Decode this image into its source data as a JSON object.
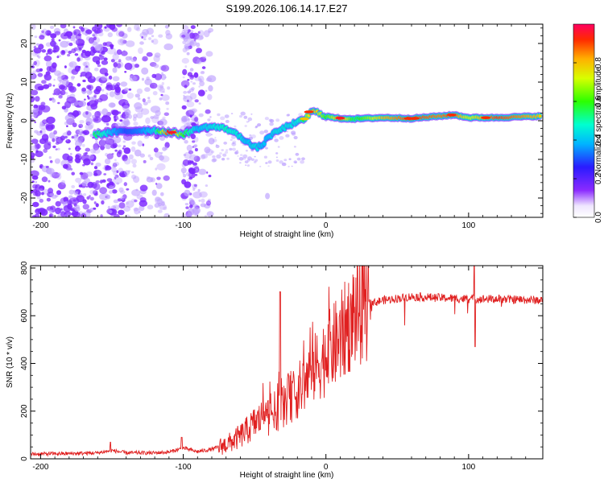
{
  "title": "S199.2026.106.14.17.E27",
  "colorbar": {
    "label": "Normalized spectral amplitude",
    "ticks": [
      "0.0",
      "0.2",
      "0.4",
      "0.6",
      "0.8"
    ],
    "tick_values": [
      0.0,
      0.2,
      0.4,
      0.6,
      0.8
    ],
    "range": [
      0,
      1
    ]
  },
  "chart_data": [
    {
      "type": "heatmap",
      "title": "",
      "xlabel": "Height of straight line (km)",
      "ylabel": "Frequency (Hz)",
      "xlim": [
        -207,
        152
      ],
      "ylim": [
        -25,
        25
      ],
      "xticks": [
        -200,
        -100,
        0,
        100
      ],
      "xtick_labels": [
        "-200",
        "-100",
        "0",
        "100"
      ],
      "yticks": [
        -20,
        -10,
        0,
        10,
        20
      ],
      "ytick_labels": [
        "-20",
        "-10",
        "0",
        "10",
        "20"
      ],
      "ridge": {
        "x": [
          -160,
          -150,
          -140,
          -130,
          -120,
          -110,
          -100,
          -90,
          -80,
          -70,
          -60,
          -55,
          -50,
          -45,
          -40,
          -35,
          -30,
          -25,
          -20,
          -15,
          -12,
          -10,
          -5,
          0,
          5,
          10,
          20,
          40,
          60,
          80,
          90,
          100,
          120,
          150
        ],
        "freq": [
          -3.5,
          -3,
          -2.8,
          -2.5,
          -2.5,
          -3,
          -3.5,
          -2,
          -1.5,
          -2,
          -4,
          -5.5,
          -7,
          -6.5,
          -4,
          -3,
          -2,
          -1,
          -0.5,
          0.5,
          1.5,
          2.5,
          2,
          1.2,
          0.8,
          0.6,
          0.5,
          0.8,
          0.6,
          1.2,
          1.5,
          0.8,
          0.8,
          1.2
        ],
        "amplitude": [
          0.55,
          0.4,
          0.3,
          0.35,
          0.45,
          0.95,
          0.6,
          0.4,
          0.45,
          0.5,
          0.45,
          0.4,
          0.45,
          0.4,
          0.4,
          0.45,
          0.45,
          0.45,
          0.45,
          0.6,
          0.75,
          0.85,
          0.75,
          0.6,
          0.7,
          0.9,
          0.55,
          0.8,
          0.9,
          0.85,
          0.9,
          0.7,
          0.9,
          0.8
        ]
      }
    },
    {
      "type": "line",
      "title": "",
      "xlabel": "Height of straight line (km)",
      "ylabel": "SNR (10 * v/v)",
      "xlim": [
        -207,
        152
      ],
      "ylim": [
        0,
        810
      ],
      "xticks": [
        -200,
        -100,
        0,
        100
      ],
      "xtick_labels": [
        "-200",
        "-100",
        "0",
        "100"
      ],
      "yticks": [
        0,
        200,
        400,
        600,
        800
      ],
      "ytick_labels": [
        "0",
        "200",
        "400",
        "600",
        "800"
      ],
      "series": [
        {
          "name": "SNR",
          "color": "#e02020",
          "x": [
            -207,
            -180,
            -160,
            -150,
            -140,
            -120,
            -110,
            -100,
            -90,
            -80,
            -75,
            -70,
            -65,
            -60,
            -55,
            -50,
            -45,
            -40,
            -35,
            -30,
            -25,
            -20,
            -15,
            -10,
            -5,
            0,
            5,
            10,
            15,
            20,
            30,
            40,
            60,
            80,
            100,
            120,
            152
          ],
          "y": [
            20,
            22,
            25,
            35,
            25,
            25,
            28,
            45,
            30,
            40,
            50,
            60,
            75,
            95,
            120,
            150,
            170,
            180,
            200,
            230,
            260,
            280,
            320,
            360,
            400,
            430,
            470,
            500,
            560,
            610,
            650,
            665,
            680,
            675,
            670,
            670,
            665
          ]
        }
      ]
    }
  ],
  "colors": {
    "line": "#e02020",
    "noise": "#7f3fff",
    "axis": "#000000",
    "background": "#ffffff"
  }
}
